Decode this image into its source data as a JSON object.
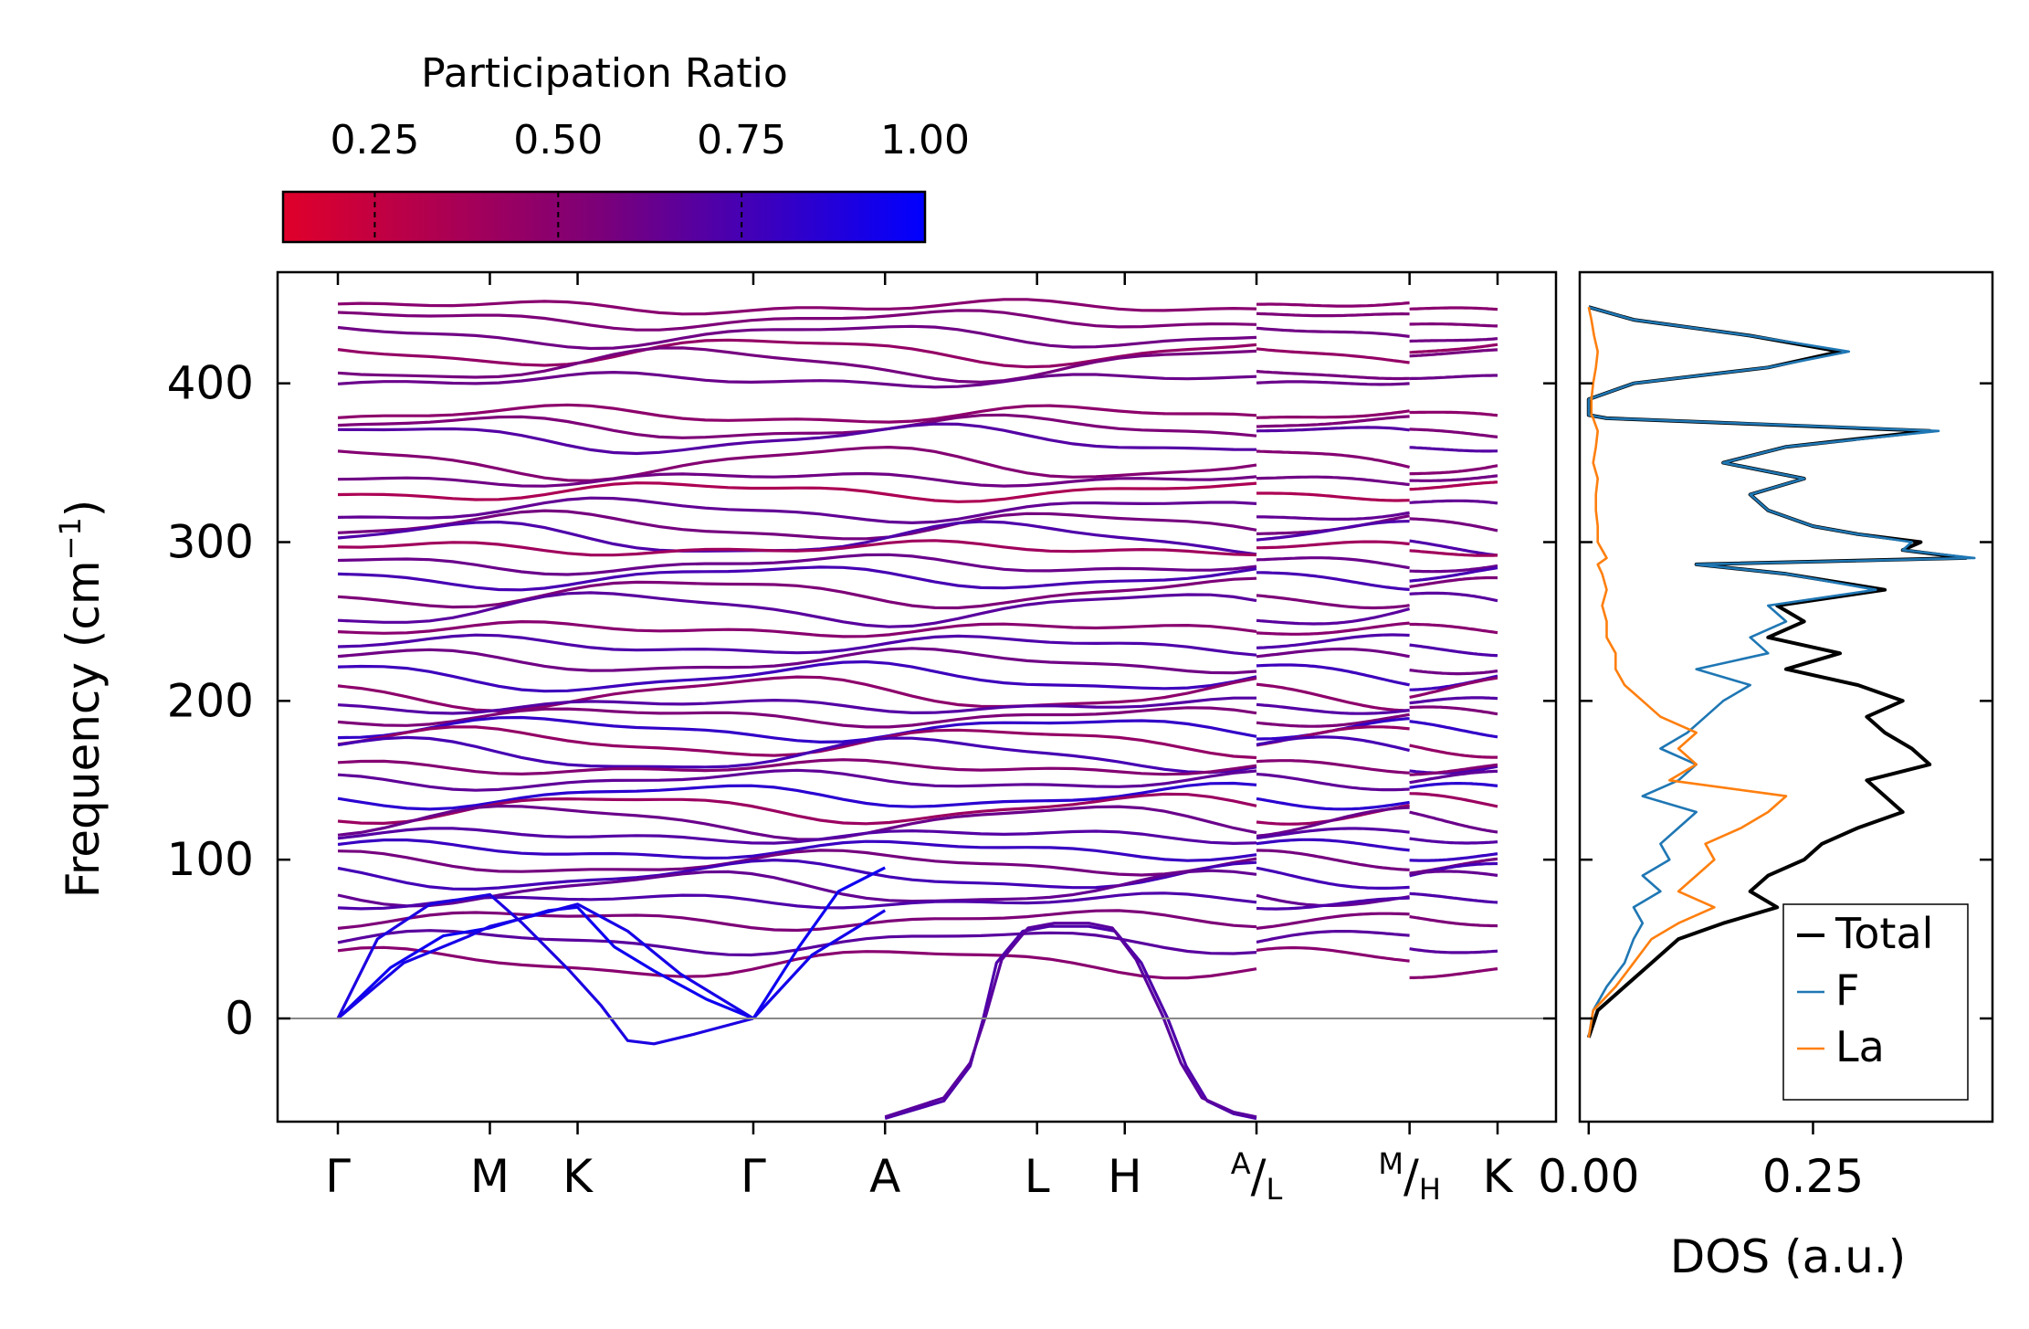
{
  "chart_data": [
    {
      "type": "line",
      "title": "",
      "xlabel": "",
      "ylabel": "Frequency (cm⁻¹)",
      "ylabel_base": "Frequency (cm",
      "ylabel_sup": "−1",
      "ylabel_close": ")",
      "ylim": [
        -65,
        470
      ],
      "yticks": [
        0,
        100,
        200,
        300,
        400
      ],
      "ytick_labels": [
        "0",
        "100",
        "200",
        "300",
        "400"
      ],
      "zero_line": 0,
      "path": {
        "kpoints": [
          0,
          0.577,
          0.91,
          1.577,
          2.077,
          2.654,
          2.987,
          3.487,
          4.068,
          4.402
        ],
        "labels": [
          "Γ",
          "M",
          "K",
          "Γ",
          "A",
          "L",
          "H",
          "A/L",
          "M/H",
          "K"
        ],
        "breaks_after_index": [
          7,
          8
        ]
      },
      "colorbar": {
        "label": "Participation Ratio",
        "ticks": [
          0.25,
          0.5,
          0.75,
          1.0
        ],
        "tick_labels": [
          "0.25",
          "0.50",
          "0.75",
          "1.00"
        ],
        "range": [
          0.125,
          1.0
        ],
        "color_low": "#e0002a",
        "color_mid": "#7a007a",
        "color_high": "#0000ff"
      },
      "acoustic_branches": [
        {
          "name": "acoustic-1",
          "x": [
            0,
            0.2,
            0.4,
            0.577,
            0.8,
            0.91,
            1.05,
            1.2,
            1.4,
            1.577
          ],
          "y": [
            0,
            32,
            52,
            57,
            68,
            70,
            45,
            30,
            12,
            0
          ],
          "pr": 0.95
        },
        {
          "name": "acoustic-2",
          "x": [
            0,
            0.25,
            0.5,
            0.577,
            0.75,
            0.91,
            1.1,
            1.3,
            1.577
          ],
          "y": [
            0,
            35,
            52,
            58,
            65,
            72,
            55,
            28,
            0
          ],
          "pr": 0.92
        },
        {
          "name": "acoustic-3",
          "x": [
            0,
            0.15,
            0.35,
            0.577,
            0.7,
            0.88,
            1.0,
            1.1,
            1.2,
            1.35,
            1.577
          ],
          "y": [
            0,
            50,
            72,
            78,
            60,
            30,
            8,
            -14,
            -16,
            -10,
            0
          ],
          "pr": 0.9
        },
        {
          "name": "acoustic-4",
          "x": [
            1.577,
            1.75,
            1.9,
            2.077
          ],
          "y": [
            0,
            45,
            80,
            95
          ],
          "pr": 0.95
        },
        {
          "name": "acoustic-5",
          "x": [
            1.577,
            1.8,
            2.077
          ],
          "y": [
            0,
            40,
            68
          ],
          "pr": 0.93
        },
        {
          "name": "soft-mode-1",
          "x": [
            2.077,
            2.3,
            2.4,
            2.45,
            2.5,
            2.6,
            2.7,
            2.85,
            2.95,
            3.05,
            3.15,
            3.22,
            3.3,
            3.4,
            3.487
          ],
          "y": [
            -63,
            -52,
            -30,
            0,
            35,
            55,
            58,
            58,
            55,
            35,
            0,
            -30,
            -52,
            -60,
            -63
          ],
          "pr": 0.72
        },
        {
          "name": "soft-mode-2",
          "x": [
            2.077,
            2.3,
            2.4,
            2.46,
            2.52,
            2.62,
            2.72,
            2.85,
            2.94,
            3.03,
            3.13,
            3.2,
            3.28,
            3.4,
            3.487
          ],
          "y": [
            -62,
            -50,
            -28,
            2,
            37,
            57,
            60,
            60,
            57,
            37,
            2,
            -28,
            -50,
            -59,
            -62
          ],
          "pr": 0.68
        }
      ],
      "optical_levels": [
        {
          "y": 448,
          "pr": 0.5
        },
        {
          "y": 440,
          "pr": 0.55
        },
        {
          "y": 430,
          "pr": 0.6
        },
        {
          "y": 420,
          "pr": 0.45
        },
        {
          "y": 412,
          "pr": 0.58
        },
        {
          "y": 402,
          "pr": 0.62
        },
        {
          "y": 380,
          "pr": 0.48
        },
        {
          "y": 372,
          "pr": 0.55
        },
        {
          "y": 365,
          "pr": 0.7
        },
        {
          "y": 350,
          "pr": 0.52
        },
        {
          "y": 340,
          "pr": 0.6
        },
        {
          "y": 332,
          "pr": 0.35
        },
        {
          "y": 320,
          "pr": 0.65
        },
        {
          "y": 310,
          "pr": 0.58
        },
        {
          "y": 302,
          "pr": 0.72
        },
        {
          "y": 296,
          "pr": 0.4
        },
        {
          "y": 286,
          "pr": 0.62
        },
        {
          "y": 278,
          "pr": 0.75
        },
        {
          "y": 268,
          "pr": 0.55
        },
        {
          "y": 258,
          "pr": 0.68
        },
        {
          "y": 245,
          "pr": 0.5
        },
        {
          "y": 235,
          "pr": 0.72
        },
        {
          "y": 225,
          "pr": 0.6
        },
        {
          "y": 215,
          "pr": 0.78
        },
        {
          "y": 205,
          "pr": 0.48
        },
        {
          "y": 197,
          "pr": 0.7
        },
        {
          "y": 190,
          "pr": 0.55
        },
        {
          "y": 182,
          "pr": 0.82
        },
        {
          "y": 174,
          "pr": 0.45
        },
        {
          "y": 166,
          "pr": 0.75
        },
        {
          "y": 158,
          "pr": 0.52
        },
        {
          "y": 150,
          "pr": 0.66
        },
        {
          "y": 140,
          "pr": 0.85
        },
        {
          "y": 132,
          "pr": 0.42
        },
        {
          "y": 124,
          "pr": 0.62
        },
        {
          "y": 115,
          "pr": 0.7
        },
        {
          "y": 106,
          "pr": 0.8
        },
        {
          "y": 98,
          "pr": 0.58
        },
        {
          "y": 90,
          "pr": 0.76
        },
        {
          "y": 82,
          "pr": 0.64
        },
        {
          "y": 74,
          "pr": 0.72
        },
        {
          "y": 62,
          "pr": 0.55
        },
        {
          "y": 48,
          "pr": 0.68
        },
        {
          "y": 35,
          "pr": 0.5
        }
      ]
    },
    {
      "type": "line",
      "title": "",
      "xlabel": "DOS (a.u.)",
      "ylabel": "",
      "xlim": [
        -0.01,
        0.45
      ],
      "xticks": [
        0.0,
        0.25
      ],
      "xtick_labels": [
        "0.00",
        "0.25"
      ],
      "ylim": [
        -65,
        470
      ],
      "legend": {
        "placement": "bottom-right",
        "entries": [
          "Total",
          "F",
          "La"
        ]
      },
      "series": [
        {
          "name": "Total",
          "color": "#000000",
          "y": [
            -12,
            5,
            20,
            35,
            50,
            60,
            70,
            80,
            90,
            100,
            110,
            120,
            130,
            140,
            150,
            160,
            170,
            180,
            190,
            200,
            210,
            220,
            230,
            240,
            250,
            260,
            270,
            280,
            286,
            290,
            295,
            300,
            305,
            310,
            320,
            330,
            340,
            350,
            360,
            370,
            378,
            380,
            390,
            400,
            410,
            420,
            430,
            440,
            448
          ],
          "x": [
            0.0,
            0.01,
            0.04,
            0.07,
            0.1,
            0.15,
            0.21,
            0.18,
            0.2,
            0.24,
            0.26,
            0.3,
            0.35,
            0.33,
            0.31,
            0.38,
            0.36,
            0.33,
            0.31,
            0.35,
            0.3,
            0.22,
            0.28,
            0.2,
            0.24,
            0.21,
            0.33,
            0.22,
            0.12,
            0.42,
            0.35,
            0.37,
            0.3,
            0.25,
            0.2,
            0.18,
            0.24,
            0.15,
            0.22,
            0.38,
            0.02,
            0.0,
            0.0,
            0.05,
            0.2,
            0.28,
            0.18,
            0.05,
            0.0
          ]
        },
        {
          "name": "F",
          "color": "#1f77b4",
          "y": [
            -12,
            5,
            20,
            35,
            50,
            60,
            70,
            80,
            90,
            100,
            110,
            120,
            130,
            140,
            150,
            160,
            170,
            180,
            190,
            200,
            210,
            220,
            230,
            240,
            250,
            260,
            270,
            280,
            286,
            290,
            295,
            300,
            305,
            310,
            320,
            330,
            340,
            350,
            360,
            370,
            378,
            380,
            390,
            400,
            410,
            420,
            430,
            440,
            448
          ],
          "x": [
            0.0,
            0.005,
            0.02,
            0.04,
            0.05,
            0.06,
            0.05,
            0.08,
            0.06,
            0.09,
            0.08,
            0.1,
            0.12,
            0.06,
            0.1,
            0.12,
            0.08,
            0.11,
            0.13,
            0.15,
            0.18,
            0.12,
            0.2,
            0.18,
            0.22,
            0.2,
            0.32,
            0.22,
            0.12,
            0.43,
            0.35,
            0.36,
            0.3,
            0.25,
            0.2,
            0.18,
            0.24,
            0.15,
            0.22,
            0.39,
            0.02,
            0.0,
            0.0,
            0.05,
            0.2,
            0.29,
            0.18,
            0.05,
            0.0
          ]
        },
        {
          "name": "La",
          "color": "#ff7f0e",
          "y": [
            -12,
            5,
            20,
            35,
            50,
            60,
            70,
            80,
            90,
            100,
            110,
            120,
            130,
            140,
            150,
            160,
            170,
            180,
            190,
            200,
            210,
            220,
            230,
            240,
            250,
            260,
            270,
            280,
            286,
            290,
            295,
            300,
            305,
            310,
            320,
            330,
            340,
            350,
            360,
            370,
            378,
            380,
            390,
            400,
            410,
            420,
            430,
            440,
            448
          ],
          "x": [
            0.0,
            0.005,
            0.03,
            0.05,
            0.07,
            0.1,
            0.14,
            0.1,
            0.12,
            0.14,
            0.13,
            0.17,
            0.2,
            0.22,
            0.09,
            0.12,
            0.1,
            0.12,
            0.08,
            0.06,
            0.04,
            0.03,
            0.03,
            0.02,
            0.02,
            0.015,
            0.02,
            0.015,
            0.01,
            0.02,
            0.015,
            0.01,
            0.01,
            0.01,
            0.008,
            0.008,
            0.01,
            0.005,
            0.008,
            0.01,
            0.005,
            0.003,
            0.003,
            0.005,
            0.008,
            0.01,
            0.006,
            0.003,
            0.0
          ]
        }
      ]
    }
  ]
}
